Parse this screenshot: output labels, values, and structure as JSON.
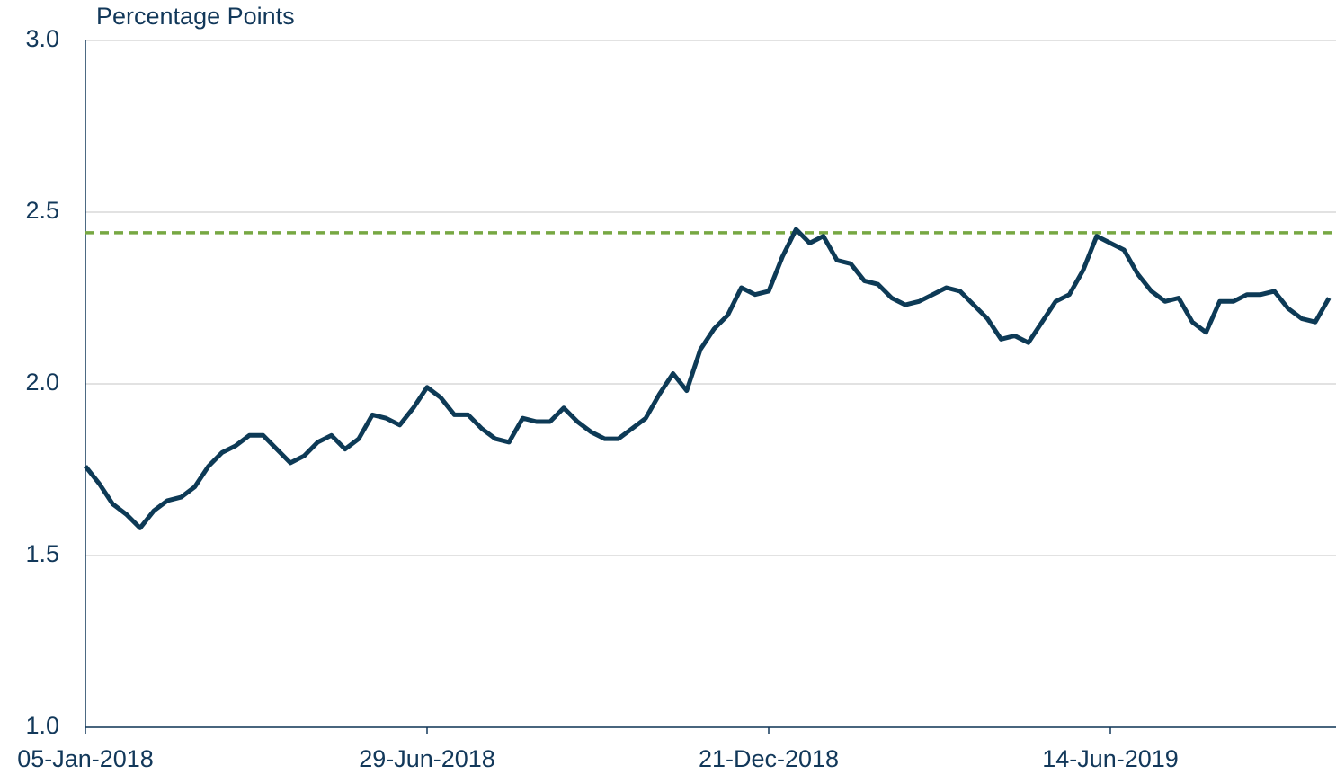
{
  "chart_data": {
    "type": "line",
    "y_label": "Percentage Points",
    "categories": [
      "05-Jan-2018",
      null,
      null,
      null,
      null,
      null,
      null,
      null,
      null,
      null,
      null,
      null,
      null,
      null,
      null,
      null,
      null,
      null,
      null,
      null,
      null,
      null,
      null,
      null,
      null,
      "29-Jun-2018",
      null,
      null,
      null,
      null,
      null,
      null,
      null,
      null,
      null,
      null,
      null,
      null,
      null,
      null,
      null,
      null,
      null,
      null,
      null,
      null,
      null,
      null,
      null,
      null,
      "21-Dec-2018",
      null,
      null,
      null,
      null,
      null,
      null,
      null,
      null,
      null,
      null,
      null,
      null,
      null,
      null,
      null,
      null,
      null,
      null,
      null,
      null,
      null,
      null,
      null,
      null,
      "14-Jun-2019",
      null,
      null,
      null,
      null,
      null,
      null,
      null,
      null,
      null,
      null,
      null,
      null,
      null,
      null,
      null,
      null
    ],
    "series": [
      {
        "color": "#0d3a56",
        "values": [
          1.76,
          1.71,
          1.65,
          1.62,
          1.58,
          1.63,
          1.66,
          1.67,
          1.7,
          1.76,
          1.8,
          1.82,
          1.85,
          1.85,
          1.81,
          1.77,
          1.79,
          1.83,
          1.85,
          1.81,
          1.84,
          1.91,
          1.9,
          1.88,
          1.93,
          1.99,
          1.96,
          1.91,
          1.91,
          1.87,
          1.84,
          1.83,
          1.9,
          1.89,
          1.89,
          1.93,
          1.89,
          1.86,
          1.84,
          1.84,
          1.87,
          1.9,
          1.97,
          2.03,
          1.98,
          2.1,
          2.16,
          2.2,
          2.28,
          2.26,
          2.27,
          2.37,
          2.45,
          2.41,
          2.43,
          2.36,
          2.35,
          2.3,
          2.29,
          2.25,
          2.23,
          2.24,
          2.26,
          2.28,
          2.27,
          2.23,
          2.19,
          2.13,
          2.14,
          2.12,
          2.18,
          2.24,
          2.26,
          2.33,
          2.43,
          2.41,
          2.39,
          2.32,
          2.27,
          2.24,
          2.25,
          2.18,
          2.15,
          2.24,
          2.24,
          2.26,
          2.26,
          2.27,
          2.22,
          2.19,
          2.18,
          2.25
        ]
      }
    ],
    "reference_lines": [
      {
        "value": 2.44,
        "color": "#77a843",
        "dashed": true
      }
    ],
    "ylim": [
      1.0,
      3.0
    ],
    "yticks": [
      {
        "value": 1.0,
        "label": "1.0"
      },
      {
        "value": 1.5,
        "label": "1.5"
      },
      {
        "value": 2.0,
        "label": "2.0"
      },
      {
        "value": 2.5,
        "label": "2.5"
      },
      {
        "value": 3.0,
        "label": "3.0"
      }
    ],
    "grid": true
  }
}
